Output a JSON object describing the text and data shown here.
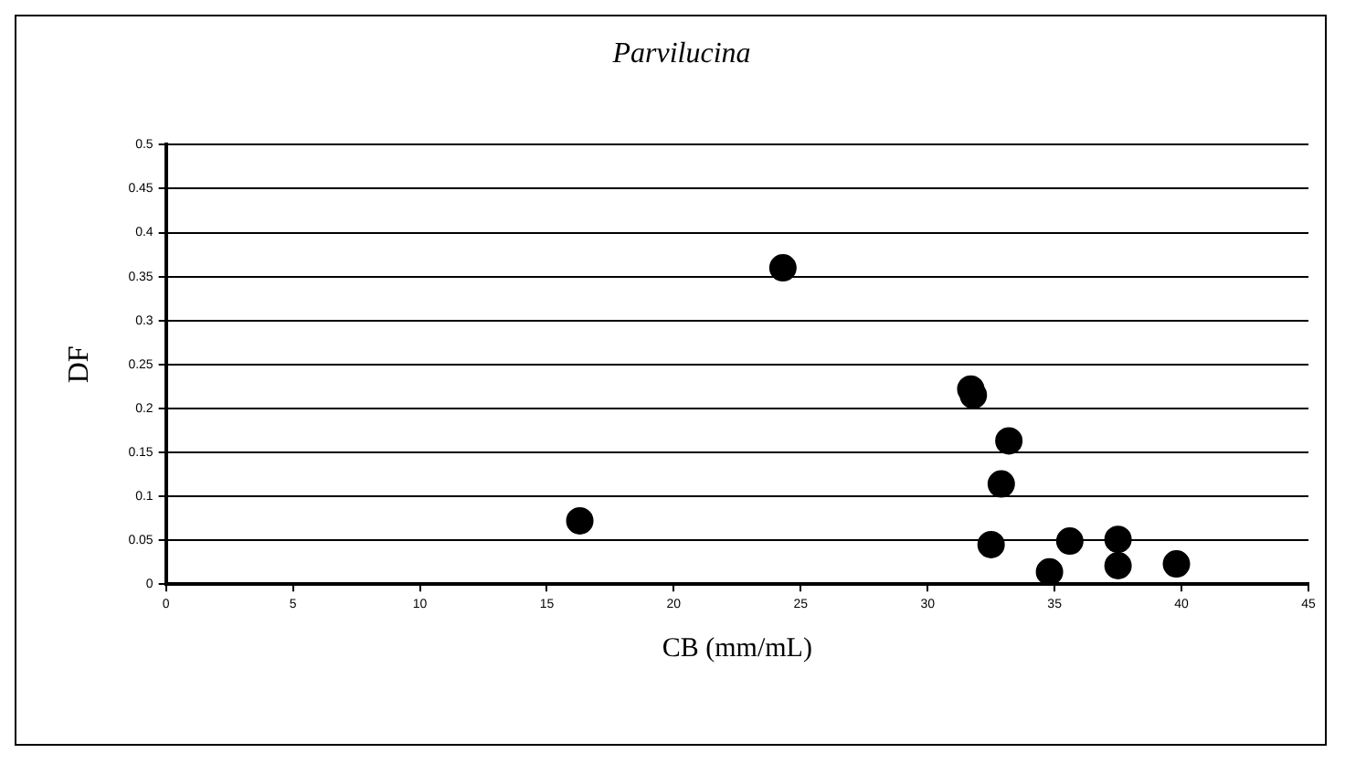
{
  "chart_data": {
    "type": "scatter",
    "title": "Parvilucina",
    "xlabel": "CB (mm/mL)",
    "ylabel": "DF",
    "x": [
      16.3,
      24.3,
      31.7,
      31.8,
      33.2,
      32.9,
      32.5,
      35.6,
      37.5,
      37.5,
      34.8,
      39.8
    ],
    "values": [
      0.072,
      0.36,
      0.222,
      0.215,
      0.163,
      0.114,
      0.045,
      0.049,
      0.051,
      0.021,
      0.014,
      0.023
    ],
    "color": "#000000",
    "marker": "circle",
    "xlim": [
      0,
      45
    ],
    "xticks": [
      0,
      5,
      10,
      15,
      20,
      25,
      30,
      35,
      40,
      45
    ],
    "ylim": [
      0,
      0.5
    ],
    "yticks": [
      0,
      0.05,
      0.1,
      0.15,
      0.2,
      0.25,
      0.3,
      0.35,
      0.4,
      0.45,
      0.5
    ],
    "grid": "y",
    "legend": false
  }
}
